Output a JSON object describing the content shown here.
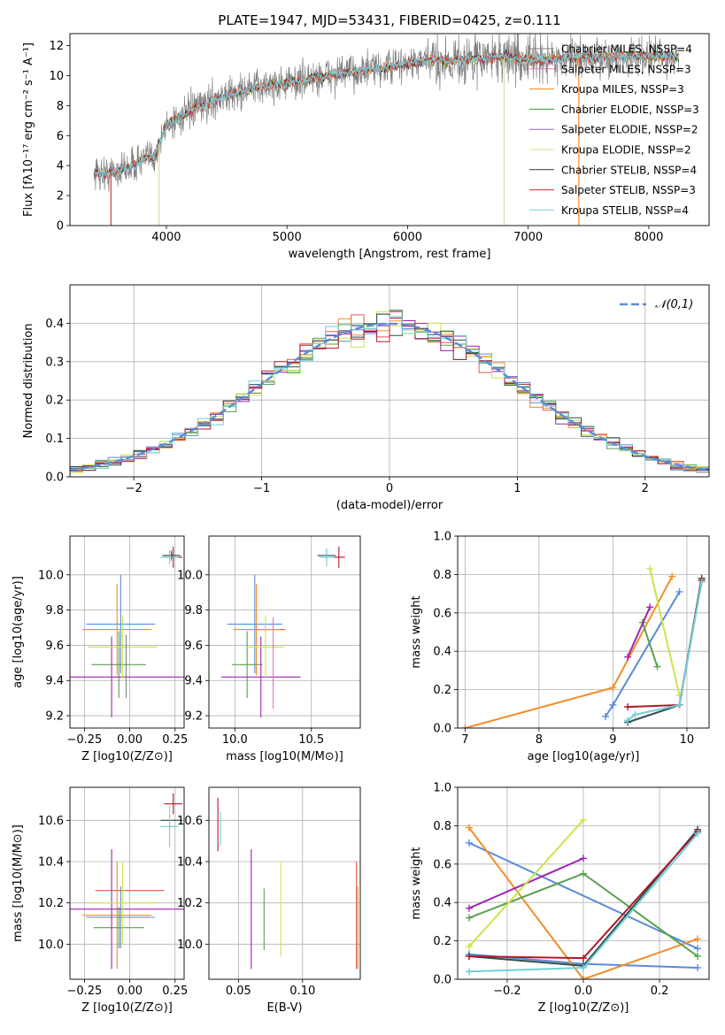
{
  "figure": {
    "title": "PLATE=1947, MJD=53431, FIBERID=0425, z=0.111"
  },
  "colors": {
    "Chabrier MILES": "#808080",
    "Salpeter MILES": "#e377c2",
    "Kroupa MILES": "#ff7f0e",
    "Chabrier ELODIE": "#2ca02c",
    "Salpeter ELODIE": "#9467bd",
    "Kroupa ELODIE": "#dbdb8d",
    "Chabrier STELIB": "#333333",
    "Salpeter STELIB": "#d62728",
    "Kroupa STELIB": "#7fd0dc",
    "hist_chabrier_miles": "#5b8bd9",
    "hist_salpeter_miles": "#e05a4e",
    "hist_kroupa_miles": "#f28e2b",
    "hist_chabrier_elodie": "#59a14f",
    "hist_salpeter_elodie": "#9c27b0",
    "hist_kroupa_elodie": "#c8e64b",
    "hist_chabrier_stelib": "#2f4f4f",
    "hist_salpeter_stelib": "#b2182b",
    "hist_kroupa_stelib": "#6fd0d6",
    "normal_curve": "#5b8bd9"
  },
  "chart_data": [
    {
      "id": "spectrum",
      "type": "line",
      "xlabel": "wavelength [Angstrom, rest frame]",
      "ylabel": "Flux [fλ10⁻¹⁷ erg cm⁻² s⁻¹ A⁻¹]",
      "xlim": [
        3200,
        8500
      ],
      "ylim": [
        0,
        12.8
      ],
      "xticks": [
        4000,
        5000,
        6000,
        7000,
        8000
      ],
      "yticks": [
        0,
        2,
        4,
        6,
        8,
        10,
        12
      ],
      "legend_position": "right",
      "data_range_x": [
        3400,
        8250
      ],
      "continuum": {
        "x": [
          3400,
          3500,
          3600,
          3700,
          3800,
          3900,
          3950,
          4000,
          4200,
          4400,
          4600,
          4800,
          5000,
          5200,
          5400,
          5600,
          5800,
          6000,
          6200,
          6400,
          6600,
          6800,
          7000,
          7200,
          7400,
          7600,
          7800,
          8000,
          8250
        ],
        "y": [
          3.6,
          3.4,
          3.7,
          3.9,
          4.4,
          4.6,
          5.6,
          6.7,
          7.6,
          8.4,
          8.9,
          9.3,
          9.5,
          9.8,
          10.1,
          10.3,
          10.5,
          10.8,
          11.0,
          11.0,
          11.1,
          11.3,
          11.0,
          11.1,
          11.2,
          11.2,
          11.3,
          11.3,
          11.3
        ]
      },
      "series": [
        {
          "name": "Chabrier MILES, NSSP=4"
        },
        {
          "name": "Salpeter MILES, NSSP=3"
        },
        {
          "name": "Kroupa MILES, NSSP=3"
        },
        {
          "name": "Chabrier ELODIE, NSSP=3"
        },
        {
          "name": "Salpeter ELODIE, NSSP=2"
        },
        {
          "name": "Kroupa ELODIE, NSSP=2"
        },
        {
          "name": "Chabrier STELIB, NSSP=4"
        },
        {
          "name": "Salpeter STELIB, NSSP=3"
        },
        {
          "name": "Kroupa STELIB, NSSP=4"
        }
      ]
    },
    {
      "id": "residuals",
      "type": "line",
      "xlabel": "(data-model)/error",
      "ylabel": "Normed distribution",
      "xlim": [
        -2.5,
        2.5
      ],
      "ylim": [
        0,
        0.5
      ],
      "xticks": [
        -2,
        -1,
        0,
        1,
        2
      ],
      "yticks": [
        0.0,
        0.1,
        0.2,
        0.3,
        0.4
      ],
      "grid": true,
      "legend": "𝒩(0,1)",
      "legend_position": "top-right",
      "bin_width": 0.1
    },
    {
      "id": "z_age",
      "type": "scatter",
      "xlabel": "Z [log10(Z/Z⊙)]",
      "ylabel": "age  [log10(age/yr)]",
      "xlim": [
        -0.33,
        0.3
      ],
      "ylim": [
        9.13,
        10.22
      ],
      "xticks": [
        -0.25,
        0.0,
        0.25
      ],
      "yticks": [
        9.2,
        9.4,
        9.6,
        9.8,
        10.0
      ],
      "grid": true,
      "points": [
        {
          "x": -0.05,
          "y": 9.72,
          "xerr": 0.19,
          "yerr": 0.28,
          "c": "hist_chabrier_miles"
        },
        {
          "x": 0.23,
          "y": 10.11,
          "xerr": 0.04,
          "yerr": 0.03,
          "c": "hist_salpeter_miles"
        },
        {
          "x": -0.07,
          "y": 9.69,
          "xerr": 0.19,
          "yerr": 0.26,
          "c": "hist_kroupa_miles"
        },
        {
          "x": -0.06,
          "y": 9.49,
          "xerr": 0.15,
          "yerr": 0.19,
          "c": "hist_chabrier_elodie"
        },
        {
          "x": -0.1,
          "y": 9.42,
          "xerr": 0.4,
          "yerr": 0.23,
          "c": "hist_salpeter_elodie"
        },
        {
          "x": -0.04,
          "y": 9.59,
          "xerr": 0.19,
          "yerr": 0.18,
          "c": "hist_kroupa_elodie"
        },
        {
          "x": 0.23,
          "y": 10.11,
          "xerr": 0.05,
          "yerr": 0.02,
          "c": "hist_chabrier_stelib"
        },
        {
          "x": 0.24,
          "y": 10.1,
          "xerr": 0.05,
          "yerr": 0.06,
          "c": "hist_salpeter_stelib"
        },
        {
          "x": 0.22,
          "y": 10.1,
          "xerr": 0.05,
          "yerr": 0.04,
          "c": "hist_kroupa_stelib"
        },
        {
          "x": -0.02,
          "y": 9.48,
          "xerr": 0.0,
          "yerr": 0.18,
          "c": "Chabrier MILES"
        }
      ]
    },
    {
      "id": "mass_age",
      "type": "scatter",
      "xlabel": "mass [log10(M/M⊙)]",
      "ylabel": "",
      "xlim": [
        9.83,
        10.82
      ],
      "ylim": [
        9.13,
        10.22
      ],
      "xticks": [
        10.0,
        10.5
      ],
      "yticks": [
        9.2,
        9.4,
        9.6,
        9.8,
        10.0
      ],
      "grid": true,
      "points": [
        {
          "x": 10.13,
          "y": 9.72,
          "xerr": 0.18,
          "yerr": 0.28,
          "c": "hist_chabrier_miles"
        },
        {
          "x": 10.2,
          "y": 9.69,
          "xerr": 0.13,
          "yerr": 0.02,
          "c": "hist_salpeter_miles"
        },
        {
          "x": 10.14,
          "y": 9.69,
          "xerr": 0.15,
          "yerr": 0.26,
          "c": "hist_kroupa_miles"
        },
        {
          "x": 10.08,
          "y": 9.49,
          "xerr": 0.1,
          "yerr": 0.19,
          "c": "hist_chabrier_elodie"
        },
        {
          "x": 10.17,
          "y": 9.42,
          "xerr": 0.26,
          "yerr": 0.23,
          "c": "hist_salpeter_elodie"
        },
        {
          "x": 10.2,
          "y": 9.59,
          "xerr": 0.12,
          "yerr": 0.18,
          "c": "hist_kroupa_elodie"
        },
        {
          "x": 10.6,
          "y": 10.11,
          "xerr": 0.06,
          "yerr": 0.03,
          "c": "hist_chabrier_stelib"
        },
        {
          "x": 10.68,
          "y": 10.1,
          "xerr": 0.04,
          "yerr": 0.06,
          "c": "hist_salpeter_stelib"
        },
        {
          "x": 10.6,
          "y": 10.1,
          "xerr": 0.05,
          "yerr": 0.05,
          "c": "hist_kroupa_stelib"
        },
        {
          "x": 10.25,
          "y": 9.5,
          "xerr": 0.0,
          "yerr": 0.26,
          "c": "Salpeter MILES"
        }
      ]
    },
    {
      "id": "age_weight",
      "type": "line",
      "xlabel": "age  [log10(age/yr)]",
      "ylabel": "mass weight",
      "xlim": [
        6.9,
        10.3
      ],
      "ylim": [
        0,
        1.0
      ],
      "xticks": [
        7,
        8,
        9,
        10
      ],
      "yticks": [
        0.0,
        0.2,
        0.4,
        0.6,
        0.8,
        1.0
      ],
      "grid": true,
      "series": [
        {
          "c": "hist_chabrier_miles",
          "x": [
            8.9,
            9.0,
            9.9
          ],
          "y": [
            0.06,
            0.12,
            0.71
          ]
        },
        {
          "c": "hist_kroupa_miles",
          "x": [
            7.0,
            9.0,
            9.8
          ],
          "y": [
            0.0,
            0.21,
            0.79
          ]
        },
        {
          "c": "hist_chabrier_elodie",
          "x": [
            9.4,
            9.6
          ],
          "y": [
            0.55,
            0.32
          ]
        },
        {
          "c": "hist_salpeter_elodie",
          "x": [
            9.2,
            9.5
          ],
          "y": [
            0.37,
            0.63
          ]
        },
        {
          "c": "hist_kroupa_elodie",
          "x": [
            9.5,
            9.9
          ],
          "y": [
            0.83,
            0.17
          ]
        },
        {
          "c": "hist_chabrier_stelib",
          "x": [
            9.2,
            9.9,
            10.2
          ],
          "y": [
            0.03,
            0.12,
            0.78
          ]
        },
        {
          "c": "hist_salpeter_stelib",
          "x": [
            9.2,
            9.9,
            10.2
          ],
          "y": [
            0.11,
            0.12,
            0.77
          ]
        },
        {
          "c": "hist_kroupa_stelib",
          "x": [
            9.2,
            9.3,
            9.9,
            10.2
          ],
          "y": [
            0.04,
            0.07,
            0.12,
            0.76
          ]
        }
      ]
    },
    {
      "id": "z_mass",
      "type": "scatter",
      "xlabel": "Z [log10(Z/Z⊙)]",
      "ylabel": "mass [log10(M/M⊙)]",
      "xlim": [
        -0.33,
        0.3
      ],
      "ylim": [
        9.83,
        10.76
      ],
      "xticks": [
        -0.25,
        0.0,
        0.25
      ],
      "yticks": [
        10.0,
        10.2,
        10.4,
        10.6
      ],
      "grid": true,
      "points": [
        {
          "x": -0.05,
          "y": 10.13,
          "xerr": 0.19,
          "yerr": 0.15,
          "c": "hist_chabrier_miles"
        },
        {
          "x": 0.0,
          "y": 10.26,
          "xerr": 0.19,
          "yerr": 0.0,
          "c": "hist_salpeter_miles"
        },
        {
          "x": -0.07,
          "y": 10.14,
          "xerr": 0.19,
          "yerr": 0.26,
          "c": "hist_kroupa_miles"
        },
        {
          "x": -0.06,
          "y": 10.08,
          "xerr": 0.14,
          "yerr": 0.1,
          "c": "hist_chabrier_elodie"
        },
        {
          "x": -0.1,
          "y": 10.17,
          "xerr": 0.4,
          "yerr": 0.29,
          "c": "hist_salpeter_elodie"
        },
        {
          "x": -0.04,
          "y": 10.2,
          "xerr": 0.19,
          "yerr": 0.2,
          "c": "hist_kroupa_elodie"
        },
        {
          "x": 0.23,
          "y": 10.6,
          "xerr": 0.06,
          "yerr": 0.0,
          "c": "hist_chabrier_stelib"
        },
        {
          "x": 0.24,
          "y": 10.68,
          "xerr": 0.05,
          "yerr": 0.05,
          "c": "hist_salpeter_stelib"
        },
        {
          "x": 0.22,
          "y": 10.57,
          "xerr": 0.05,
          "yerr": 0.1,
          "c": "hist_kroupa_stelib"
        }
      ]
    },
    {
      "id": "ebv_mass",
      "type": "scatter",
      "xlabel": "E(B-V)",
      "ylabel": "",
      "xlim": [
        0.027,
        0.145
      ],
      "ylim": [
        9.83,
        10.76
      ],
      "xticks": [
        0.05,
        0.1
      ],
      "yticks": [
        10.0,
        10.2,
        10.4,
        10.6
      ],
      "grid": true,
      "points": [
        {
          "x": 0.034,
          "y": 10.58,
          "yerr": 0.13,
          "c": "hist_salpeter_stelib"
        },
        {
          "x": 0.036,
          "y": 10.56,
          "yerr": 0.08,
          "c": "hist_kroupa_stelib"
        },
        {
          "x": 0.06,
          "y": 10.17,
          "yerr": 0.29,
          "c": "hist_salpeter_elodie"
        },
        {
          "x": 0.07,
          "y": 10.12,
          "yerr": 0.15,
          "c": "hist_chabrier_elodie"
        },
        {
          "x": 0.083,
          "y": 10.17,
          "yerr": 0.23,
          "c": "hist_kroupa_elodie"
        },
        {
          "x": 0.142,
          "y": 10.14,
          "yerr": 0.26,
          "c": "hist_salpeter_miles"
        },
        {
          "x": 0.143,
          "y": 10.08,
          "yerr": 0.2,
          "c": "hist_kroupa_miles"
        }
      ]
    },
    {
      "id": "z_weight",
      "type": "line",
      "xlabel": "Z [log10(Z/Z⊙)]",
      "ylabel": "mass weight",
      "xlim": [
        -0.33,
        0.33
      ],
      "ylim": [
        0,
        1.0
      ],
      "xticks": [
        -0.2,
        0.0,
        0.2
      ],
      "yticks": [
        0.0,
        0.2,
        0.4,
        0.6,
        0.8,
        1.0
      ],
      "grid": true,
      "series": [
        {
          "c": "hist_chabrier_miles",
          "x": [
            -0.3,
            0.3
          ],
          "y": [
            0.71,
            0.16
          ]
        },
        {
          "c": "hist_chabrier_miles",
          "x": [
            -0.3,
            0.0,
            0.3
          ],
          "y": [
            0.13,
            0.08,
            0.06
          ]
        },
        {
          "c": "hist_kroupa_miles",
          "x": [
            -0.3,
            0.0
          ],
          "y": [
            0.79,
            0.0
          ]
        },
        {
          "c": "hist_kroupa_miles",
          "x": [
            0.0,
            0.3
          ],
          "y": [
            0.0,
            0.21
          ]
        },
        {
          "c": "hist_chabrier_elodie",
          "x": [
            -0.3,
            0.0,
            0.3
          ],
          "y": [
            0.32,
            0.55,
            0.12
          ]
        },
        {
          "c": "hist_salpeter_elodie",
          "x": [
            -0.3,
            0.0
          ],
          "y": [
            0.37,
            0.63
          ]
        },
        {
          "c": "hist_kroupa_elodie",
          "x": [
            -0.3,
            0.0
          ],
          "y": [
            0.17,
            0.83
          ]
        },
        {
          "c": "hist_chabrier_stelib",
          "x": [
            -0.3,
            0.0,
            0.3
          ],
          "y": [
            0.12,
            0.07,
            0.78
          ]
        },
        {
          "c": "hist_salpeter_stelib",
          "x": [
            -0.3,
            0.0,
            0.3
          ],
          "y": [
            0.12,
            0.11,
            0.77
          ]
        },
        {
          "c": "hist_kroupa_stelib",
          "x": [
            -0.3,
            0.0,
            0.3
          ],
          "y": [
            0.04,
            0.06,
            0.76
          ]
        }
      ]
    }
  ]
}
